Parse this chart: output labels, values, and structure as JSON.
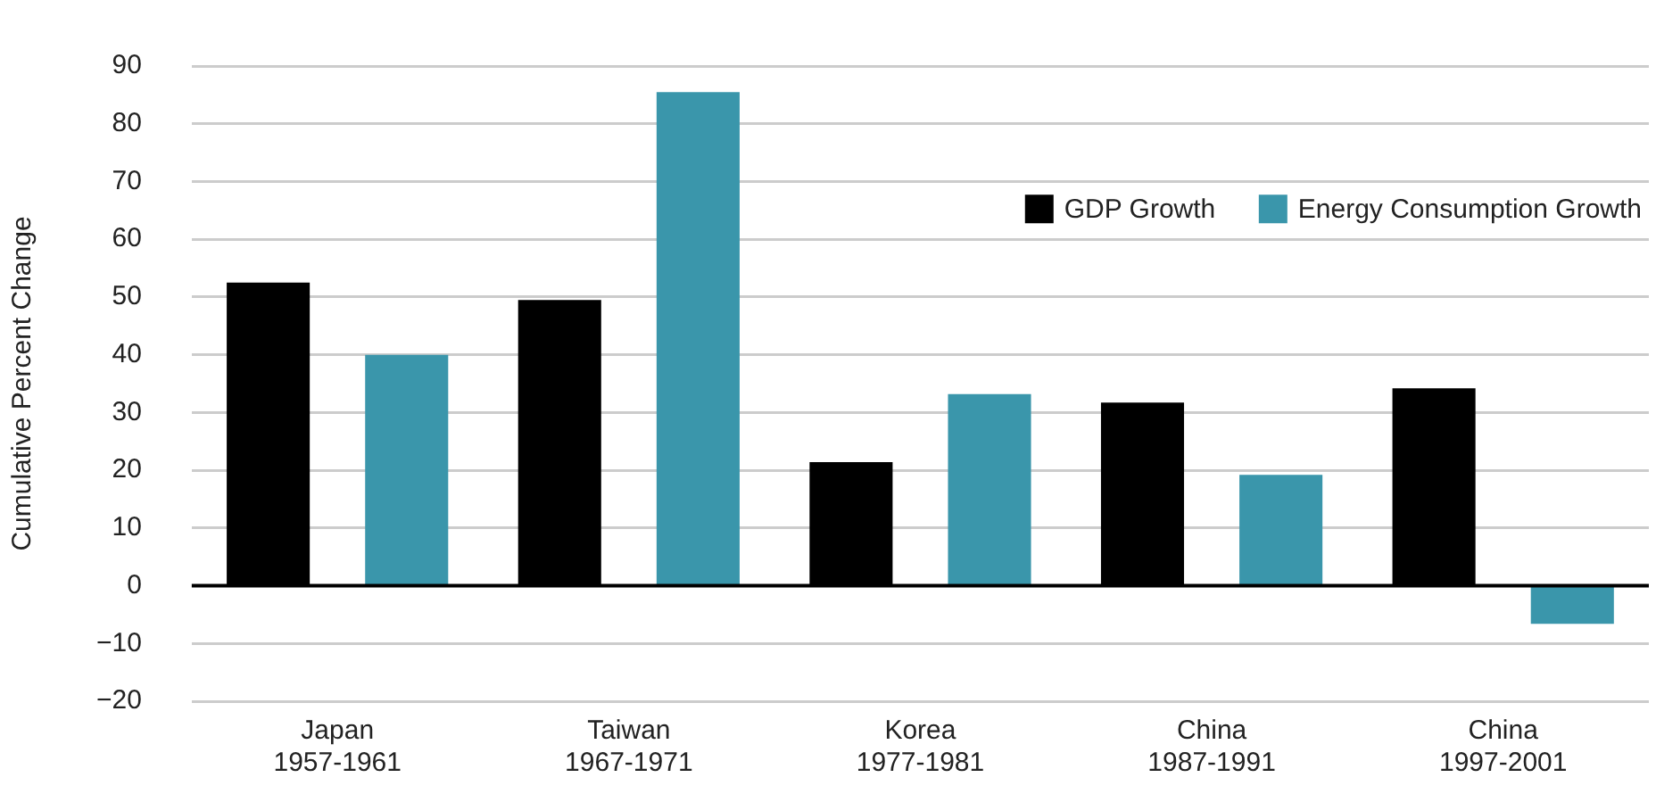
{
  "chart_data": {
    "type": "bar",
    "ylabel": "Cumulative Percent Change",
    "categories": [
      "Japan\n1957-1961",
      "Taiwan\n1967-1971",
      "Korea\n1977-1981",
      "China\n1987-1991",
      "China\n1997-2001"
    ],
    "series": [
      {
        "name": "GDP Growth",
        "color": "#000000",
        "values": [
          52.5,
          49.5,
          21.4,
          31.7,
          34.2
        ]
      },
      {
        "name": "Energy Consumption Growth",
        "color": "#3a96ab",
        "values": [
          40,
          85.5,
          33.2,
          19.2,
          -6.6
        ]
      }
    ],
    "ylim": [
      -20,
      90
    ],
    "yticks": [
      -20,
      -10,
      0,
      10,
      20,
      30,
      40,
      50,
      60,
      70,
      80,
      90
    ],
    "grid": "y",
    "legend": "top right"
  }
}
